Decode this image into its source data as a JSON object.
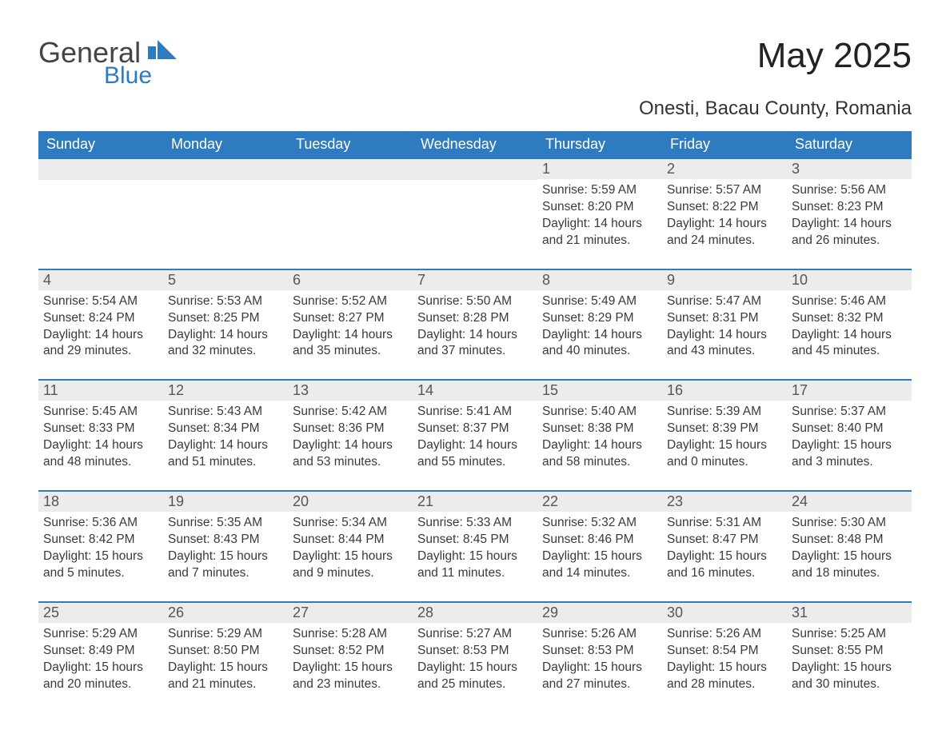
{
  "logo": {
    "text1": "General",
    "text2": "Blue",
    "brand_color": "#2f7bbf"
  },
  "title": "May 2025",
  "subtitle": "Onesti, Bacau County, Romania",
  "colors": {
    "header_bg": "#2f7bbf",
    "header_text": "#ffffff",
    "daynum_bg": "#ececec",
    "row_border": "#2f7bbf",
    "body_text": "#3a3a3a",
    "page_bg": "#ffffff"
  },
  "day_headers": [
    "Sunday",
    "Monday",
    "Tuesday",
    "Wednesday",
    "Thursday",
    "Friday",
    "Saturday"
  ],
  "weeks": [
    [
      {
        "day": "",
        "sunrise": "",
        "sunset": "",
        "daylight": ""
      },
      {
        "day": "",
        "sunrise": "",
        "sunset": "",
        "daylight": ""
      },
      {
        "day": "",
        "sunrise": "",
        "sunset": "",
        "daylight": ""
      },
      {
        "day": "",
        "sunrise": "",
        "sunset": "",
        "daylight": ""
      },
      {
        "day": "1",
        "sunrise": "Sunrise: 5:59 AM",
        "sunset": "Sunset: 8:20 PM",
        "daylight": "Daylight: 14 hours and 21 minutes."
      },
      {
        "day": "2",
        "sunrise": "Sunrise: 5:57 AM",
        "sunset": "Sunset: 8:22 PM",
        "daylight": "Daylight: 14 hours and 24 minutes."
      },
      {
        "day": "3",
        "sunrise": "Sunrise: 5:56 AM",
        "sunset": "Sunset: 8:23 PM",
        "daylight": "Daylight: 14 hours and 26 minutes."
      }
    ],
    [
      {
        "day": "4",
        "sunrise": "Sunrise: 5:54 AM",
        "sunset": "Sunset: 8:24 PM",
        "daylight": "Daylight: 14 hours and 29 minutes."
      },
      {
        "day": "5",
        "sunrise": "Sunrise: 5:53 AM",
        "sunset": "Sunset: 8:25 PM",
        "daylight": "Daylight: 14 hours and 32 minutes."
      },
      {
        "day": "6",
        "sunrise": "Sunrise: 5:52 AM",
        "sunset": "Sunset: 8:27 PM",
        "daylight": "Daylight: 14 hours and 35 minutes."
      },
      {
        "day": "7",
        "sunrise": "Sunrise: 5:50 AM",
        "sunset": "Sunset: 8:28 PM",
        "daylight": "Daylight: 14 hours and 37 minutes."
      },
      {
        "day": "8",
        "sunrise": "Sunrise: 5:49 AM",
        "sunset": "Sunset: 8:29 PM",
        "daylight": "Daylight: 14 hours and 40 minutes."
      },
      {
        "day": "9",
        "sunrise": "Sunrise: 5:47 AM",
        "sunset": "Sunset: 8:31 PM",
        "daylight": "Daylight: 14 hours and 43 minutes."
      },
      {
        "day": "10",
        "sunrise": "Sunrise: 5:46 AM",
        "sunset": "Sunset: 8:32 PM",
        "daylight": "Daylight: 14 hours and 45 minutes."
      }
    ],
    [
      {
        "day": "11",
        "sunrise": "Sunrise: 5:45 AM",
        "sunset": "Sunset: 8:33 PM",
        "daylight": "Daylight: 14 hours and 48 minutes."
      },
      {
        "day": "12",
        "sunrise": "Sunrise: 5:43 AM",
        "sunset": "Sunset: 8:34 PM",
        "daylight": "Daylight: 14 hours and 51 minutes."
      },
      {
        "day": "13",
        "sunrise": "Sunrise: 5:42 AM",
        "sunset": "Sunset: 8:36 PM",
        "daylight": "Daylight: 14 hours and 53 minutes."
      },
      {
        "day": "14",
        "sunrise": "Sunrise: 5:41 AM",
        "sunset": "Sunset: 8:37 PM",
        "daylight": "Daylight: 14 hours and 55 minutes."
      },
      {
        "day": "15",
        "sunrise": "Sunrise: 5:40 AM",
        "sunset": "Sunset: 8:38 PM",
        "daylight": "Daylight: 14 hours and 58 minutes."
      },
      {
        "day": "16",
        "sunrise": "Sunrise: 5:39 AM",
        "sunset": "Sunset: 8:39 PM",
        "daylight": "Daylight: 15 hours and 0 minutes."
      },
      {
        "day": "17",
        "sunrise": "Sunrise: 5:37 AM",
        "sunset": "Sunset: 8:40 PM",
        "daylight": "Daylight: 15 hours and 3 minutes."
      }
    ],
    [
      {
        "day": "18",
        "sunrise": "Sunrise: 5:36 AM",
        "sunset": "Sunset: 8:42 PM",
        "daylight": "Daylight: 15 hours and 5 minutes."
      },
      {
        "day": "19",
        "sunrise": "Sunrise: 5:35 AM",
        "sunset": "Sunset: 8:43 PM",
        "daylight": "Daylight: 15 hours and 7 minutes."
      },
      {
        "day": "20",
        "sunrise": "Sunrise: 5:34 AM",
        "sunset": "Sunset: 8:44 PM",
        "daylight": "Daylight: 15 hours and 9 minutes."
      },
      {
        "day": "21",
        "sunrise": "Sunrise: 5:33 AM",
        "sunset": "Sunset: 8:45 PM",
        "daylight": "Daylight: 15 hours and 11 minutes."
      },
      {
        "day": "22",
        "sunrise": "Sunrise: 5:32 AM",
        "sunset": "Sunset: 8:46 PM",
        "daylight": "Daylight: 15 hours and 14 minutes."
      },
      {
        "day": "23",
        "sunrise": "Sunrise: 5:31 AM",
        "sunset": "Sunset: 8:47 PM",
        "daylight": "Daylight: 15 hours and 16 minutes."
      },
      {
        "day": "24",
        "sunrise": "Sunrise: 5:30 AM",
        "sunset": "Sunset: 8:48 PM",
        "daylight": "Daylight: 15 hours and 18 minutes."
      }
    ],
    [
      {
        "day": "25",
        "sunrise": "Sunrise: 5:29 AM",
        "sunset": "Sunset: 8:49 PM",
        "daylight": "Daylight: 15 hours and 20 minutes."
      },
      {
        "day": "26",
        "sunrise": "Sunrise: 5:29 AM",
        "sunset": "Sunset: 8:50 PM",
        "daylight": "Daylight: 15 hours and 21 minutes."
      },
      {
        "day": "27",
        "sunrise": "Sunrise: 5:28 AM",
        "sunset": "Sunset: 8:52 PM",
        "daylight": "Daylight: 15 hours and 23 minutes."
      },
      {
        "day": "28",
        "sunrise": "Sunrise: 5:27 AM",
        "sunset": "Sunset: 8:53 PM",
        "daylight": "Daylight: 15 hours and 25 minutes."
      },
      {
        "day": "29",
        "sunrise": "Sunrise: 5:26 AM",
        "sunset": "Sunset: 8:53 PM",
        "daylight": "Daylight: 15 hours and 27 minutes."
      },
      {
        "day": "30",
        "sunrise": "Sunrise: 5:26 AM",
        "sunset": "Sunset: 8:54 PM",
        "daylight": "Daylight: 15 hours and 28 minutes."
      },
      {
        "day": "31",
        "sunrise": "Sunrise: 5:25 AM",
        "sunset": "Sunset: 8:55 PM",
        "daylight": "Daylight: 15 hours and 30 minutes."
      }
    ]
  ]
}
